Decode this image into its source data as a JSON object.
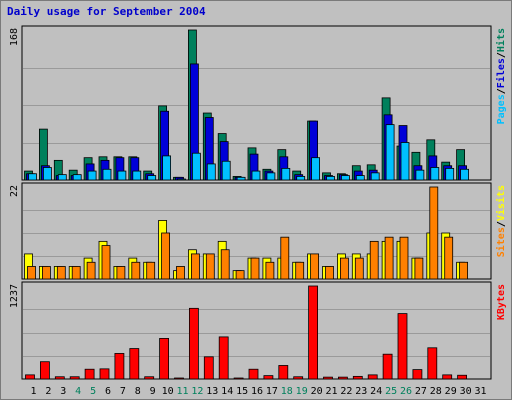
{
  "page_title": "Daily usage for September 2004",
  "colors": {
    "hits": "#00805c",
    "files": "#0000d8",
    "pages": "#00c0ff",
    "visits": "#ffff00",
    "sites": "#ff8000",
    "kbytes": "#ff0000",
    "weekend": "#00805c",
    "weekday": "#000000"
  },
  "chart_data": [
    {
      "type": "bar",
      "title": "Daily usage for September 2004",
      "legend": [
        "Pages",
        "Files",
        "Hits"
      ],
      "legend_separator": "/",
      "ymax_label": "168",
      "ylim": [
        0,
        168
      ],
      "categories": [
        "1",
        "2",
        "3",
        "4",
        "5",
        "6",
        "7",
        "8",
        "9",
        "10",
        "11",
        "12",
        "13",
        "14",
        "15",
        "16",
        "17",
        "18",
        "19",
        "20",
        "21",
        "22",
        "23",
        "24",
        "25",
        "26",
        "27",
        "28",
        "29",
        "30"
      ],
      "weekend_days": [
        "4",
        "5",
        "11",
        "12",
        "18",
        "19",
        "25",
        "26"
      ],
      "series": [
        {
          "name": "Hits",
          "values": [
            10,
            57,
            22,
            11,
            25,
            26,
            26,
            26,
            10,
            83,
            3,
            168,
            75,
            52,
            4,
            36,
            12,
            34,
            10,
            66,
            8,
            7,
            16,
            17,
            92,
            38,
            31,
            45,
            20,
            34
          ]
        },
        {
          "name": "Files",
          "values": [
            7,
            16,
            5,
            5,
            18,
            22,
            25,
            25,
            7,
            77,
            3,
            130,
            70,
            43,
            3,
            29,
            10,
            26,
            6,
            66,
            5,
            6,
            10,
            11,
            73,
            61,
            16,
            27,
            16,
            16
          ]
        },
        {
          "name": "Pages",
          "values": [
            7,
            14,
            6,
            6,
            10,
            12,
            10,
            10,
            5,
            27,
            1,
            30,
            18,
            21,
            3,
            10,
            8,
            13,
            4,
            25,
            4,
            5,
            5,
            8,
            62,
            42,
            11,
            14,
            13,
            12
          ]
        }
      ]
    },
    {
      "type": "bar",
      "legend": [
        "Sites",
        "Visits"
      ],
      "legend_separator": "/",
      "ymax_label": "22",
      "ylim": [
        0,
        22
      ],
      "categories": [
        "1",
        "2",
        "3",
        "4",
        "5",
        "6",
        "7",
        "8",
        "9",
        "10",
        "11",
        "12",
        "13",
        "14",
        "15",
        "16",
        "17",
        "18",
        "19",
        "20",
        "21",
        "22",
        "23",
        "24",
        "25",
        "26",
        "27",
        "28",
        "29",
        "30"
      ],
      "series": [
        {
          "name": "Visits",
          "values": [
            6,
            3,
            3,
            3,
            5,
            9,
            3,
            5,
            4,
            14,
            2,
            7,
            6,
            9,
            2,
            5,
            5,
            5,
            4,
            6,
            3,
            6,
            6,
            6,
            9,
            9,
            5,
            11,
            11,
            4
          ]
        },
        {
          "name": "Sites",
          "values": [
            3,
            3,
            3,
            3,
            4,
            8,
            3,
            4,
            4,
            11,
            3,
            6,
            6,
            7,
            2,
            5,
            4,
            10,
            4,
            6,
            3,
            5,
            5,
            9,
            10,
            10,
            5,
            22,
            10,
            4
          ]
        }
      ]
    },
    {
      "type": "bar",
      "legend": [
        "KBytes"
      ],
      "ymax_label": "1237",
      "ylim": [
        0,
        1237
      ],
      "categories": [
        "1",
        "2",
        "3",
        "4",
        "5",
        "6",
        "7",
        "8",
        "9",
        "10",
        "11",
        "12",
        "13",
        "14",
        "15",
        "16",
        "17",
        "18",
        "19",
        "20",
        "21",
        "22",
        "23",
        "24",
        "25",
        "26",
        "27",
        "28",
        "29",
        "30"
      ],
      "series": [
        {
          "name": "KBytes",
          "values": [
            55,
            230,
            30,
            30,
            130,
            135,
            340,
            405,
            30,
            540,
            10,
            940,
            295,
            560,
            10,
            130,
            45,
            180,
            30,
            1237,
            25,
            25,
            35,
            55,
            330,
            870,
            125,
            415,
            55,
            50
          ]
        }
      ]
    }
  ],
  "x_axis": {
    "tick_labels": [
      "1",
      "2",
      "3",
      "4",
      "5",
      "6",
      "7",
      "8",
      "9",
      "10",
      "11",
      "12",
      "13",
      "14",
      "15",
      "16",
      "17",
      "18",
      "19",
      "20",
      "21",
      "22",
      "23",
      "24",
      "25",
      "26",
      "27",
      "28",
      "29",
      "30",
      "31"
    ]
  }
}
